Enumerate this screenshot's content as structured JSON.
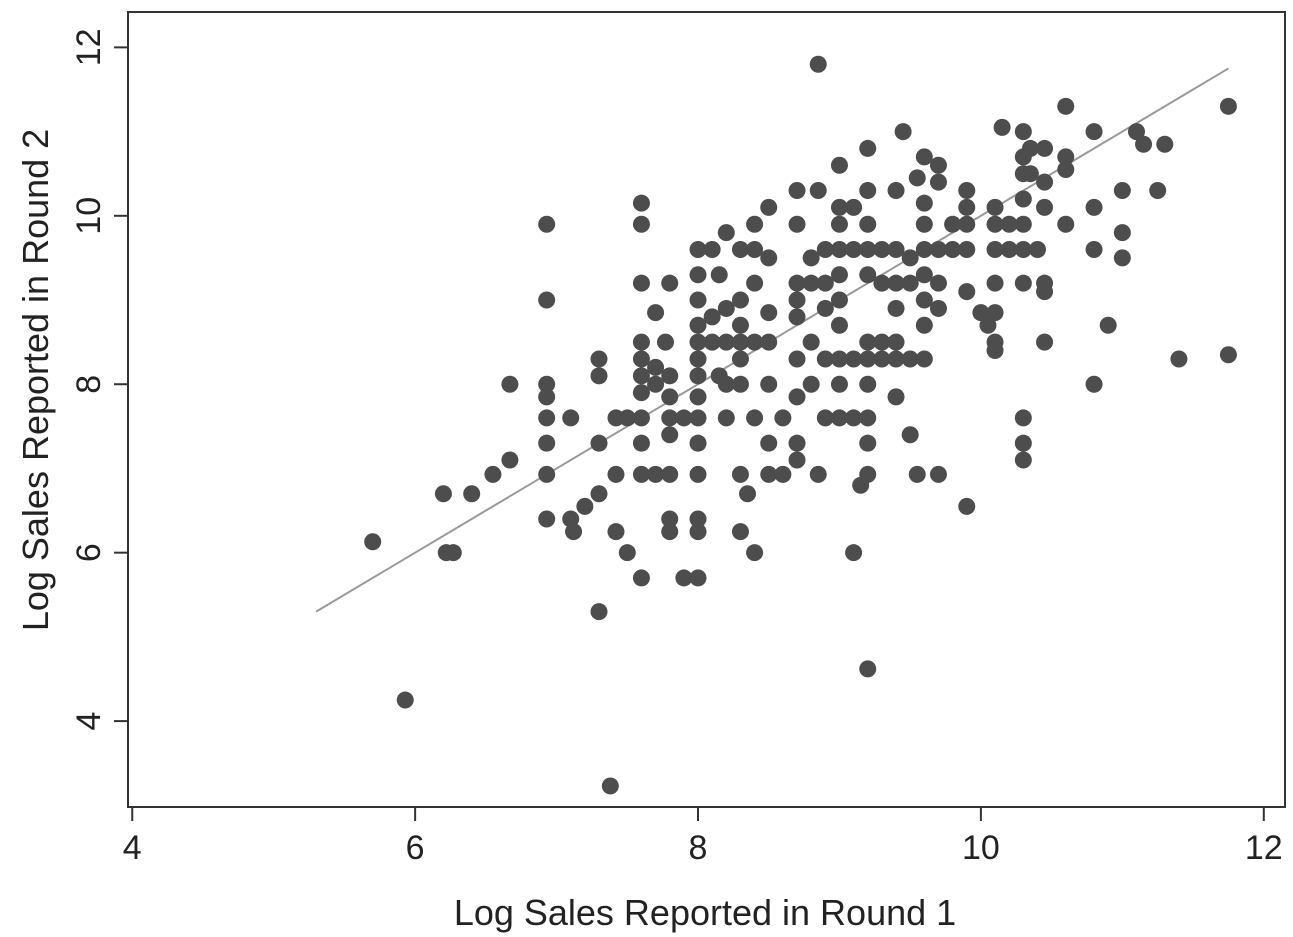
{
  "chart_data": {
    "type": "scatter",
    "title": "",
    "xlabel": "Log Sales Reported in Round 1",
    "ylabel": "Log Sales Reported in Round 2",
    "xlim": [
      3.97,
      12.15
    ],
    "ylim": [
      2.98,
      12.42
    ],
    "xticks": [
      4,
      6,
      8,
      10,
      12
    ],
    "yticks": [
      4,
      6,
      8,
      10,
      12
    ],
    "grid": false,
    "legend": "none",
    "colors": {
      "points": "#4d4d4d",
      "fit_line": "#9a9a9a",
      "axes": "#333333"
    },
    "fit_line": {
      "x": [
        5.3,
        11.75
      ],
      "y": [
        5.3,
        11.75
      ]
    },
    "series": [
      {
        "points": [
          [
            5.7,
            6.13
          ],
          [
            5.93,
            4.25
          ],
          [
            6.2,
            6.7
          ],
          [
            6.22,
            6.0
          ],
          [
            6.27,
            6.0
          ],
          [
            6.4,
            6.7
          ],
          [
            6.55,
            6.93
          ],
          [
            6.67,
            8.0
          ],
          [
            6.67,
            7.1
          ],
          [
            6.93,
            9.9
          ],
          [
            6.93,
            9.0
          ],
          [
            6.93,
            8.0
          ],
          [
            6.93,
            7.85
          ],
          [
            6.93,
            7.6
          ],
          [
            6.93,
            7.3
          ],
          [
            6.93,
            6.93
          ],
          [
            6.93,
            6.4
          ],
          [
            7.1,
            7.6
          ],
          [
            7.1,
            6.4
          ],
          [
            7.12,
            6.25
          ],
          [
            7.2,
            6.55
          ],
          [
            7.3,
            8.3
          ],
          [
            7.3,
            8.1
          ],
          [
            7.3,
            7.3
          ],
          [
            7.3,
            6.7
          ],
          [
            7.3,
            5.3
          ],
          [
            7.38,
            3.23
          ],
          [
            7.42,
            7.6
          ],
          [
            7.42,
            6.93
          ],
          [
            7.42,
            6.25
          ],
          [
            7.5,
            7.6
          ],
          [
            7.5,
            6.0
          ],
          [
            7.6,
            10.15
          ],
          [
            7.6,
            9.9
          ],
          [
            7.6,
            9.2
          ],
          [
            7.6,
            8.5
          ],
          [
            7.6,
            8.3
          ],
          [
            7.6,
            8.1
          ],
          [
            7.6,
            7.9
          ],
          [
            7.6,
            7.6
          ],
          [
            7.6,
            7.3
          ],
          [
            7.6,
            6.93
          ],
          [
            7.6,
            5.7
          ],
          [
            7.7,
            8.85
          ],
          [
            7.7,
            8.2
          ],
          [
            7.7,
            8.0
          ],
          [
            7.7,
            6.93
          ],
          [
            7.77,
            8.5
          ],
          [
            7.8,
            9.2
          ],
          [
            7.8,
            8.1
          ],
          [
            7.8,
            7.85
          ],
          [
            7.8,
            7.6
          ],
          [
            7.8,
            7.4
          ],
          [
            7.8,
            6.93
          ],
          [
            7.8,
            6.4
          ],
          [
            7.8,
            6.25
          ],
          [
            7.9,
            7.6
          ],
          [
            7.9,
            5.7
          ],
          [
            8.0,
            9.6
          ],
          [
            8.0,
            9.3
          ],
          [
            8.0,
            9.0
          ],
          [
            8.0,
            8.7
          ],
          [
            8.0,
            8.5
          ],
          [
            8.0,
            8.3
          ],
          [
            8.0,
            8.1
          ],
          [
            8.0,
            7.85
          ],
          [
            8.0,
            7.6
          ],
          [
            8.0,
            7.3
          ],
          [
            8.0,
            6.93
          ],
          [
            8.0,
            6.4
          ],
          [
            8.0,
            6.25
          ],
          [
            8.0,
            5.7
          ],
          [
            8.1,
            9.6
          ],
          [
            8.1,
            8.8
          ],
          [
            8.1,
            8.5
          ],
          [
            8.15,
            9.3
          ],
          [
            8.15,
            8.1
          ],
          [
            8.2,
            9.8
          ],
          [
            8.2,
            8.9
          ],
          [
            8.2,
            8.5
          ],
          [
            8.2,
            8.0
          ],
          [
            8.2,
            7.6
          ],
          [
            8.3,
            9.6
          ],
          [
            8.3,
            9.0
          ],
          [
            8.3,
            8.7
          ],
          [
            8.3,
            8.5
          ],
          [
            8.3,
            8.3
          ],
          [
            8.3,
            8.0
          ],
          [
            8.3,
            6.93
          ],
          [
            8.3,
            6.25
          ],
          [
            8.35,
            6.7
          ],
          [
            8.4,
            9.9
          ],
          [
            8.4,
            9.6
          ],
          [
            8.4,
            9.2
          ],
          [
            8.4,
            8.5
          ],
          [
            8.4,
            7.6
          ],
          [
            8.4,
            6.0
          ],
          [
            8.5,
            10.1
          ],
          [
            8.5,
            9.5
          ],
          [
            8.5,
            8.85
          ],
          [
            8.5,
            8.5
          ],
          [
            8.5,
            8.0
          ],
          [
            8.5,
            7.3
          ],
          [
            8.5,
            6.93
          ],
          [
            8.6,
            7.6
          ],
          [
            8.6,
            6.93
          ],
          [
            8.7,
            10.3
          ],
          [
            8.7,
            9.9
          ],
          [
            8.7,
            9.2
          ],
          [
            8.7,
            9.0
          ],
          [
            8.7,
            8.8
          ],
          [
            8.7,
            8.3
          ],
          [
            8.7,
            7.85
          ],
          [
            8.7,
            7.3
          ],
          [
            8.7,
            7.1
          ],
          [
            8.8,
            9.5
          ],
          [
            8.8,
            9.2
          ],
          [
            8.8,
            8.5
          ],
          [
            8.8,
            8.0
          ],
          [
            8.85,
            11.8
          ],
          [
            8.85,
            10.3
          ],
          [
            8.85,
            6.93
          ],
          [
            8.9,
            9.6
          ],
          [
            8.9,
            9.2
          ],
          [
            8.9,
            8.9
          ],
          [
            8.9,
            8.3
          ],
          [
            8.9,
            7.6
          ],
          [
            9.0,
            10.6
          ],
          [
            9.0,
            10.1
          ],
          [
            9.0,
            9.9
          ],
          [
            9.0,
            9.6
          ],
          [
            9.0,
            9.3
          ],
          [
            9.0,
            9.0
          ],
          [
            9.0,
            8.7
          ],
          [
            9.0,
            8.3
          ],
          [
            9.0,
            8.0
          ],
          [
            9.0,
            7.6
          ],
          [
            9.1,
            10.1
          ],
          [
            9.1,
            9.6
          ],
          [
            9.1,
            8.3
          ],
          [
            9.1,
            7.6
          ],
          [
            9.1,
            6.0
          ],
          [
            9.15,
            6.8
          ],
          [
            9.2,
            10.8
          ],
          [
            9.2,
            10.3
          ],
          [
            9.2,
            9.9
          ],
          [
            9.2,
            9.6
          ],
          [
            9.2,
            9.3
          ],
          [
            9.2,
            8.5
          ],
          [
            9.2,
            8.3
          ],
          [
            9.2,
            8.0
          ],
          [
            9.2,
            7.6
          ],
          [
            9.2,
            7.3
          ],
          [
            9.2,
            6.93
          ],
          [
            9.2,
            4.62
          ],
          [
            9.3,
            9.6
          ],
          [
            9.3,
            9.2
          ],
          [
            9.3,
            8.5
          ],
          [
            9.3,
            8.3
          ],
          [
            9.4,
            10.3
          ],
          [
            9.4,
            9.6
          ],
          [
            9.4,
            9.2
          ],
          [
            9.4,
            8.9
          ],
          [
            9.4,
            8.5
          ],
          [
            9.4,
            8.3
          ],
          [
            9.4,
            7.85
          ],
          [
            9.45,
            11.0
          ],
          [
            9.5,
            9.5
          ],
          [
            9.5,
            9.2
          ],
          [
            9.5,
            8.3
          ],
          [
            9.5,
            7.4
          ],
          [
            9.55,
            10.45
          ],
          [
            9.55,
            6.93
          ],
          [
            9.6,
            10.7
          ],
          [
            9.6,
            10.15
          ],
          [
            9.6,
            9.9
          ],
          [
            9.6,
            9.6
          ],
          [
            9.6,
            9.3
          ],
          [
            9.6,
            9.0
          ],
          [
            9.6,
            8.7
          ],
          [
            9.6,
            8.3
          ],
          [
            9.7,
            10.6
          ],
          [
            9.7,
            10.4
          ],
          [
            9.7,
            9.6
          ],
          [
            9.7,
            9.2
          ],
          [
            9.7,
            8.9
          ],
          [
            9.7,
            6.93
          ],
          [
            9.8,
            9.9
          ],
          [
            9.8,
            9.6
          ],
          [
            9.9,
            10.3
          ],
          [
            9.9,
            10.1
          ],
          [
            9.9,
            9.9
          ],
          [
            9.9,
            9.6
          ],
          [
            9.9,
            9.1
          ],
          [
            9.9,
            6.55
          ],
          [
            10.0,
            8.85
          ],
          [
            10.05,
            8.7
          ],
          [
            10.1,
            10.1
          ],
          [
            10.1,
            9.9
          ],
          [
            10.1,
            9.6
          ],
          [
            10.1,
            9.2
          ],
          [
            10.1,
            8.85
          ],
          [
            10.1,
            8.5
          ],
          [
            10.1,
            8.4
          ],
          [
            10.15,
            11.05
          ],
          [
            10.2,
            9.9
          ],
          [
            10.2,
            9.6
          ],
          [
            10.3,
            11.0
          ],
          [
            10.3,
            10.7
          ],
          [
            10.3,
            10.5
          ],
          [
            10.3,
            10.2
          ],
          [
            10.3,
            9.9
          ],
          [
            10.3,
            9.6
          ],
          [
            10.3,
            9.2
          ],
          [
            10.3,
            7.6
          ],
          [
            10.3,
            7.3
          ],
          [
            10.3,
            7.1
          ],
          [
            10.35,
            10.8
          ],
          [
            10.35,
            10.5
          ],
          [
            10.4,
            9.6
          ],
          [
            10.45,
            10.8
          ],
          [
            10.45,
            10.4
          ],
          [
            10.45,
            10.1
          ],
          [
            10.45,
            9.2
          ],
          [
            10.45,
            9.1
          ],
          [
            10.45,
            8.5
          ],
          [
            10.6,
            11.3
          ],
          [
            10.6,
            10.7
          ],
          [
            10.6,
            10.55
          ],
          [
            10.6,
            9.9
          ],
          [
            10.8,
            11.0
          ],
          [
            10.8,
            10.1
          ],
          [
            10.8,
            9.6
          ],
          [
            10.8,
            8.0
          ],
          [
            10.9,
            8.7
          ],
          [
            11.0,
            10.3
          ],
          [
            11.0,
            9.8
          ],
          [
            11.0,
            9.5
          ],
          [
            11.1,
            11.0
          ],
          [
            11.15,
            10.85
          ],
          [
            11.25,
            10.3
          ],
          [
            11.3,
            10.85
          ],
          [
            11.4,
            8.3
          ],
          [
            11.75,
            11.3
          ],
          [
            11.75,
            8.35
          ]
        ]
      }
    ]
  }
}
